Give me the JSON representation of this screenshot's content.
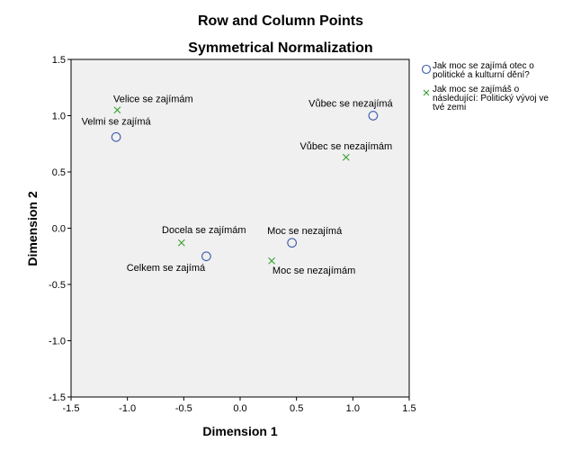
{
  "colors": {
    "plot_background": "#f0f0f0",
    "row_marker": "#3b5bab",
    "column_marker": "#33a02c",
    "axis": "#000000"
  },
  "chart_data": {
    "type": "scatter",
    "title": "Row and Column Points",
    "subtitle": "Symmetrical Normalization",
    "xlabel": "Dimension 1",
    "ylabel": "Dimension 2",
    "xlim": [
      -1.5,
      1.5
    ],
    "ylim": [
      -1.5,
      1.5
    ],
    "xticks": [
      "-1.5",
      "-1.0",
      "-0.5",
      "0.0",
      "0.5",
      "1.0",
      "1.5"
    ],
    "yticks": [
      "-1.5",
      "-1.0",
      "-0.5",
      "0.0",
      "0.5",
      "1.0",
      "1.5"
    ],
    "grid": false,
    "legend_position": "right",
    "series": [
      {
        "name": "Jak moc se zajímá otec o politické a kulturní dění?",
        "legend_lines": [
          "Jak moc se zajímá otec o",
          "politické a kulturní dění?"
        ],
        "marker": "circle",
        "points": [
          {
            "label": "Velmi se zajímá",
            "x": -1.1,
            "y": 0.81
          },
          {
            "label": "Celkem se zajímá",
            "x": -0.3,
            "y": -0.25
          },
          {
            "label": "Moc se nezajímá",
            "x": 0.46,
            "y": -0.13
          },
          {
            "label": "Vůbec se nezajímá",
            "x": 1.18,
            "y": 1.0
          }
        ]
      },
      {
        "name": "Jak moc se zajímáš o následující: Politický vývoj ve tvé zemi",
        "legend_lines": [
          "Jak moc se zajímáš o",
          "následující: Politický vývoj ve",
          "tvé zemi"
        ],
        "marker": "x",
        "points": [
          {
            "label": "Velice se zajímám",
            "x": -1.09,
            "y": 1.05
          },
          {
            "label": "Docela se zajímám",
            "x": -0.52,
            "y": -0.13
          },
          {
            "label": "Moc se nezajímám",
            "x": 0.28,
            "y": -0.29
          },
          {
            "label": "Vůbec se nezajímám",
            "x": 0.94,
            "y": 0.63
          }
        ]
      }
    ]
  }
}
